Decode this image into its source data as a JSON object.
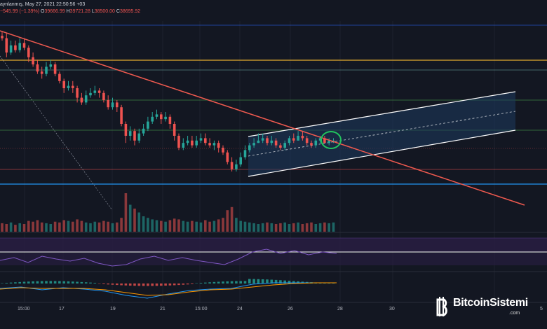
{
  "header": {
    "line1": "aynlanmış, May 27, 2021 22:50:56 +03",
    "change": "−545.99 (−1.39%)",
    "open_label": "O",
    "open": "39666.99",
    "high_label": "H",
    "high": "39721.28",
    "low_label": "L",
    "low": "38500.00",
    "close_label": "C",
    "close": "38695.92"
  },
  "x_ticks": [
    "15:00",
    "17",
    "19",
    "21",
    "15:00",
    "24",
    "26",
    "28",
    "30",
    "5"
  ],
  "watermark": {
    "text": "BitcoinSistemi",
    "sub": ".com",
    "icon": "bitcoin-b-icon"
  },
  "colors": {
    "up": "#26a69a",
    "down": "#ef5350",
    "trendline": "#f05a4f",
    "channel": "#ffffff",
    "highlight_circle": "#22c55e",
    "rsi": "#7e57c2",
    "level_blue": "#2962ff",
    "level_orange": "#e0a82e",
    "level_green": "#4caf50"
  },
  "chart_data": {
    "type": "candlestick",
    "candles": [
      [
        82,
        81,
        84,
        80
      ],
      [
        81,
        75,
        83,
        73
      ],
      [
        75,
        78,
        80,
        74
      ],
      [
        78,
        76,
        80,
        75
      ],
      [
        76,
        79,
        81,
        75
      ],
      [
        79,
        77,
        81,
        76
      ],
      [
        77,
        73,
        78,
        71
      ],
      [
        73,
        70,
        75,
        69
      ],
      [
        70,
        67,
        72,
        66
      ],
      [
        67,
        66,
        69,
        64
      ],
      [
        66,
        69,
        71,
        65
      ],
      [
        69,
        70,
        72,
        68
      ],
      [
        70,
        66,
        71,
        65
      ],
      [
        66,
        63,
        67,
        62
      ],
      [
        63,
        60,
        64,
        58
      ],
      [
        60,
        61,
        63,
        59
      ],
      [
        61,
        60,
        63,
        58
      ],
      [
        60,
        56,
        61,
        54
      ],
      [
        56,
        54,
        58,
        53
      ],
      [
        54,
        57,
        59,
        53
      ],
      [
        57,
        58,
        60,
        56
      ],
      [
        58,
        59,
        61,
        57
      ],
      [
        59,
        58,
        60,
        56
      ],
      [
        58,
        55,
        59,
        54
      ],
      [
        55,
        52,
        57,
        51
      ],
      [
        52,
        54,
        56,
        51
      ],
      [
        54,
        52,
        55,
        50
      ],
      [
        52,
        45,
        53,
        44
      ],
      [
        45,
        40,
        46,
        37
      ],
      [
        40,
        42,
        44,
        38
      ],
      [
        42,
        38,
        43,
        36
      ],
      [
        38,
        41,
        43,
        37
      ],
      [
        41,
        43,
        45,
        40
      ],
      [
        43,
        46,
        48,
        42
      ],
      [
        46,
        48,
        50,
        45
      ],
      [
        48,
        49,
        51,
        47
      ],
      [
        49,
        47,
        50,
        45
      ],
      [
        47,
        48,
        50,
        46
      ],
      [
        48,
        45,
        49,
        43
      ],
      [
        45,
        40,
        46,
        38
      ],
      [
        40,
        35,
        41,
        34
      ],
      [
        35,
        37,
        39,
        34
      ],
      [
        37,
        38,
        40,
        36
      ],
      [
        38,
        36,
        40,
        35
      ],
      [
        36,
        38,
        40,
        35
      ],
      [
        38,
        39,
        41,
        37
      ],
      [
        39,
        37,
        41,
        36
      ],
      [
        37,
        36,
        39,
        35
      ],
      [
        36,
        37,
        38,
        34
      ],
      [
        37,
        35,
        38,
        33
      ],
      [
        35,
        33,
        36,
        32
      ],
      [
        33,
        29,
        34,
        28
      ],
      [
        29,
        26,
        31,
        25
      ],
      [
        26,
        28,
        30,
        25
      ],
      [
        28,
        31,
        33,
        27
      ],
      [
        31,
        34,
        36,
        30
      ],
      [
        34,
        36,
        37,
        33
      ],
      [
        36,
        37,
        39,
        35
      ],
      [
        37,
        38,
        41,
        37
      ],
      [
        38,
        39,
        41,
        37
      ],
      [
        39,
        37,
        40,
        36
      ],
      [
        37,
        38,
        40,
        36
      ],
      [
        38,
        36,
        39,
        35
      ],
      [
        36,
        35,
        37,
        34
      ],
      [
        35,
        37,
        38,
        34
      ],
      [
        37,
        39,
        40,
        36
      ],
      [
        39,
        38,
        41,
        37
      ],
      [
        38,
        40,
        42,
        38
      ],
      [
        40,
        39,
        42,
        38
      ],
      [
        39,
        37,
        40,
        36
      ],
      [
        37,
        36,
        38,
        35
      ],
      [
        36,
        38,
        39,
        35
      ],
      [
        38,
        39,
        40,
        37
      ],
      [
        39,
        37,
        40,
        37
      ],
      [
        37,
        38,
        39,
        36
      ],
      [
        38,
        38,
        39,
        37
      ]
    ],
    "volumes": [
      11,
      10,
      12,
      9,
      11,
      10,
      14,
      13,
      15,
      12,
      11,
      10,
      13,
      12,
      15,
      14,
      13,
      16,
      14,
      12,
      11,
      13,
      12,
      14,
      13,
      11,
      12,
      18,
      50,
      35,
      30,
      25,
      20,
      18,
      16,
      15,
      14,
      13,
      15,
      17,
      16,
      14,
      13,
      14,
      13,
      12,
      15,
      13,
      14,
      16,
      18,
      28,
      32,
      18,
      14,
      13,
      12,
      11,
      10,
      11,
      12,
      11,
      10,
      11,
      12,
      10,
      11,
      12,
      10,
      11,
      12,
      10,
      11,
      12,
      11,
      12
    ]
  }
}
